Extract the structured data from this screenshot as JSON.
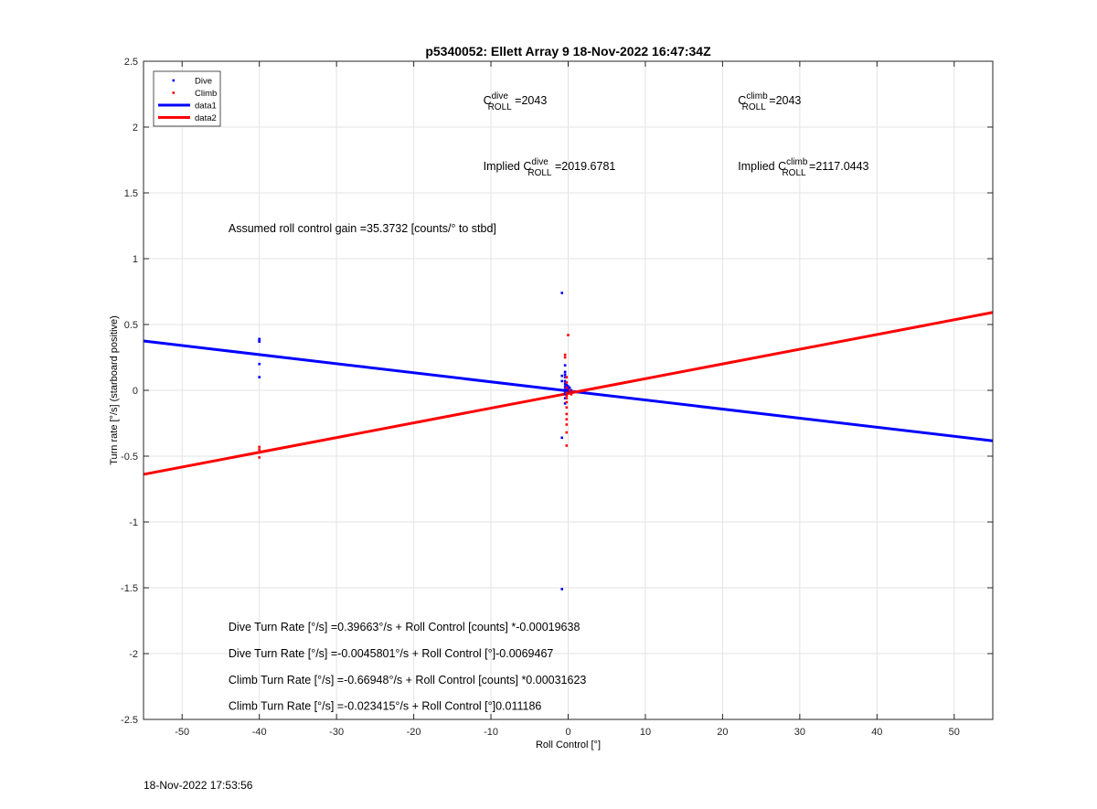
{
  "chart_data": {
    "type": "scatter",
    "title": "p5340052: Ellett Array 9 18-Nov-2022 16:47:34Z",
    "xlabel": "Roll Control [°]",
    "ylabel": "Turn rate [°/s] (starboard positive)",
    "xlim": [
      -55,
      55
    ],
    "ylim": [
      -2.5,
      2.5
    ],
    "xticks": [
      -50,
      -40,
      -30,
      -20,
      -10,
      0,
      10,
      20,
      30,
      40,
      50
    ],
    "yticks": [
      -2.5,
      -2,
      -1.5,
      -1,
      -0.5,
      0,
      0.5,
      1,
      1.5,
      2,
      2.5
    ],
    "xtick_labels": [
      "-50",
      "-40",
      "-30",
      "-20",
      "-10",
      "0",
      "10",
      "20",
      "30",
      "40",
      "50"
    ],
    "ytick_labels": [
      "-2.5",
      "-2",
      "-1.5",
      "-1",
      "-0.5",
      "0",
      "0.5",
      "1",
      "1.5",
      "2",
      "2.5"
    ],
    "grid": true,
    "legend_position": "top-left",
    "legend": [
      {
        "label": "Dive",
        "style": "dot",
        "color": "#0000ff"
      },
      {
        "label": "Climb",
        "style": "dot",
        "color": "#ff0000"
      },
      {
        "label": "data1",
        "style": "line",
        "color": "#0000ff"
      },
      {
        "label": "data2",
        "style": "line",
        "color": "#ff0000"
      }
    ],
    "series": [
      {
        "name": "Dive",
        "style": "dot",
        "color": "#0000ff",
        "points": [
          [
            -40,
            0.39
          ],
          [
            -40,
            0.38
          ],
          [
            -40,
            0.37
          ],
          [
            -40,
            0.2
          ],
          [
            -40,
            0.1
          ],
          [
            -26.5,
            0.18
          ],
          [
            -0.8,
            0.74
          ],
          [
            -0.8,
            0.11
          ],
          [
            -0.8,
            0.07
          ],
          [
            -0.8,
            -0.36
          ],
          [
            -0.8,
            -1.51
          ],
          [
            -0.4,
            0.19
          ],
          [
            -0.4,
            0.14
          ],
          [
            -0.4,
            0.12
          ],
          [
            -0.4,
            0.1
          ],
          [
            -0.4,
            0.07
          ],
          [
            -0.4,
            0.05
          ],
          [
            -0.4,
            0.03
          ],
          [
            -0.4,
            0.01
          ],
          [
            -0.4,
            -0.01
          ],
          [
            -0.4,
            -0.03
          ],
          [
            -0.4,
            -0.06
          ],
          [
            -0.4,
            -0.1
          ],
          [
            -0.2,
            0.04
          ],
          [
            -0.2,
            0.02
          ],
          [
            -0.2,
            0.0
          ],
          [
            0,
            0.03
          ],
          [
            0,
            0.01
          ],
          [
            0,
            -0.01
          ],
          [
            0.2,
            0.02
          ],
          [
            0.4,
            0.0
          ],
          [
            0.6,
            -0.01
          ]
        ]
      },
      {
        "name": "Climb",
        "style": "dot",
        "color": "#ff0000",
        "points": [
          [
            -40,
            -0.43
          ],
          [
            -40,
            -0.45
          ],
          [
            -40,
            -0.47
          ],
          [
            -40,
            -0.51
          ],
          [
            0,
            0.42
          ],
          [
            -0.4,
            0.27
          ],
          [
            -0.4,
            0.25
          ],
          [
            -0.2,
            0.1
          ],
          [
            -0.2,
            0.06
          ],
          [
            -0.2,
            0.02
          ],
          [
            -0.2,
            -0.02
          ],
          [
            -0.2,
            -0.04
          ],
          [
            -0.2,
            -0.06
          ],
          [
            -0.2,
            -0.09
          ],
          [
            -0.2,
            -0.13
          ],
          [
            -0.2,
            -0.18
          ],
          [
            -0.2,
            -0.22
          ],
          [
            -0.2,
            -0.26
          ],
          [
            -0.2,
            -0.32
          ],
          [
            -0.2,
            -0.42
          ],
          [
            0.2,
            0.0
          ],
          [
            0.2,
            -0.02
          ],
          [
            0.4,
            -0.03
          ],
          [
            0.6,
            -0.01
          ]
        ]
      },
      {
        "name": "data1",
        "style": "line",
        "color": "#0000ff",
        "points": [
          [
            -55,
            0.3748
          ],
          [
            55,
            -0.3839
          ]
        ]
      },
      {
        "name": "data2",
        "style": "line",
        "color": "#ff0000",
        "points": [
          [
            -55,
            -0.6386
          ],
          [
            55,
            0.5919
          ]
        ]
      }
    ],
    "annotations": [
      {
        "id": "c_dive",
        "base": "C",
        "sup": "dive",
        "sub": "ROLL",
        "suffix": " =2043",
        "x": -11,
        "y": 2.2
      },
      {
        "id": "c_climb",
        "base": "C",
        "sup": "climb",
        "sub": "ROLL",
        "suffix": " =2043",
        "x": 22,
        "y": 2.2
      },
      {
        "id": "implied_dive",
        "prefix": "Implied ",
        "base": "C",
        "sup": "dive",
        "sub": "ROLL",
        "suffix": " =2019.6781",
        "x": -11,
        "y": 1.7
      },
      {
        "id": "implied_climb",
        "prefix": "Implied ",
        "base": "C",
        "sup": "climb",
        "sub": "ROLL",
        "suffix": " =2117.0443",
        "x": 22,
        "y": 1.7
      },
      {
        "id": "gain",
        "text": "Assumed roll control gain =35.3732 [counts/° to stbd]",
        "x": -44,
        "y": 1.23
      },
      {
        "id": "dive_counts",
        "text": "Dive Turn Rate [°/s] =0.39663°/s + Roll Control [counts] *-0.00019638",
        "x": -44,
        "y": -1.8
      },
      {
        "id": "dive_deg",
        "text": "Dive Turn Rate [°/s] =-0.0045801°/s + Roll Control [°]-0.0069467",
        "x": -44,
        "y": -2.0
      },
      {
        "id": "climb_counts",
        "text": "Climb Turn Rate [°/s] =-0.66948°/s + Roll Control [counts] *0.00031623",
        "x": -44,
        "y": -2.2
      },
      {
        "id": "climb_deg",
        "text": "Climb Turn Rate [°/s] =-0.023415°/s + Roll Control [°]0.011186",
        "x": -44,
        "y": -2.4
      }
    ]
  },
  "footer": {
    "timestamp": "18-Nov-2022 17:53:56"
  }
}
